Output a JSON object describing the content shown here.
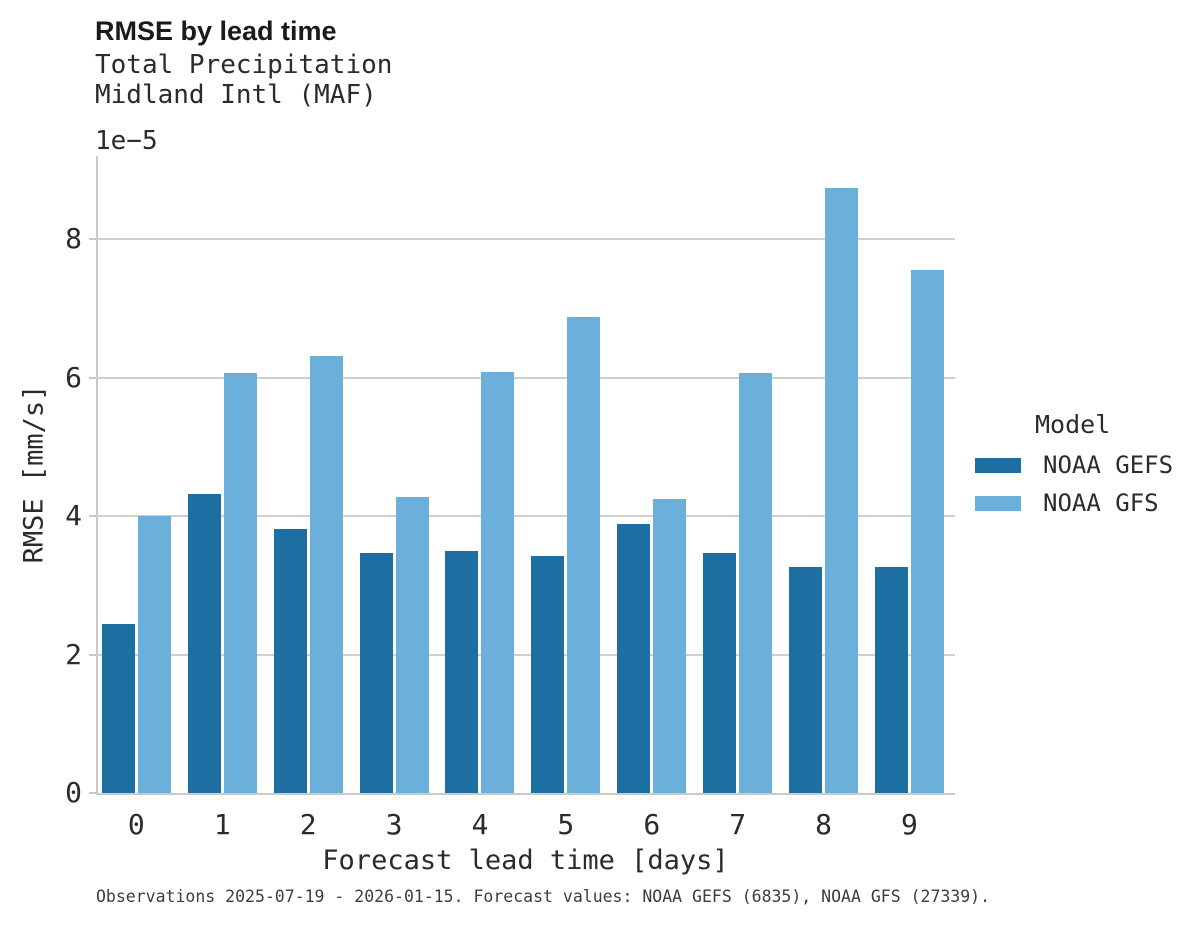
{
  "header": {
    "title": "RMSE by lead time",
    "subtitle": "Total Precipitation\nMidland Intl (MAF)"
  },
  "chart_data": {
    "type": "bar",
    "title": "RMSE by lead time",
    "subtitle_lines": [
      "Total Precipitation",
      "Midland Intl (MAF)"
    ],
    "xlabel": "Forecast lead time [days]",
    "ylabel": "RMSE [mm/s]",
    "y_offset_label": "1e−5",
    "unit_scale": "1e-5",
    "categories": [
      0,
      1,
      2,
      3,
      4,
      5,
      6,
      7,
      8,
      9
    ],
    "series": [
      {
        "name": "NOAA GEFS",
        "color": "#1c6fa0",
        "values": [
          2.44,
          4.32,
          3.81,
          3.47,
          3.5,
          3.43,
          3.88,
          3.47,
          3.27,
          3.27
        ]
      },
      {
        "name": "NOAA GFS",
        "color": "#6bb0da",
        "values": [
          4.0,
          6.06,
          6.31,
          4.28,
          6.08,
          6.87,
          4.24,
          6.07,
          8.74,
          7.55
        ]
      }
    ],
    "yticks": [
      0,
      2,
      4,
      6,
      8
    ],
    "gridlines": [
      2,
      4,
      6,
      8
    ],
    "ylim": [
      0,
      9.2
    ],
    "grid": true,
    "legend_title": "Model",
    "legend_position": "right"
  },
  "legend": {
    "title": "Model",
    "items": [
      {
        "label": "NOAA GEFS",
        "color": "#1c6fa0"
      },
      {
        "label": "NOAA GFS",
        "color": "#6bb0da"
      }
    ]
  },
  "footer": {
    "caption": "Observations 2025-07-19 - 2026-01-15. Forecast values: NOAA GEFS (6835), NOAA GFS (27339)."
  }
}
